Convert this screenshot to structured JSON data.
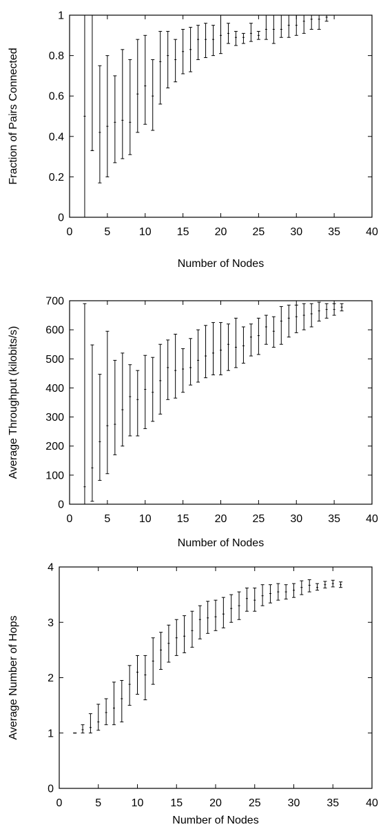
{
  "chart_data": [
    {
      "type": "scatter",
      "errorbars": true,
      "xlabel": "Number of Nodes",
      "ylabel": "Fraction of Pairs Connected",
      "xlim": [
        0,
        40
      ],
      "ylim": [
        0,
        1
      ],
      "xticks": [
        0,
        5,
        10,
        15,
        20,
        25,
        30,
        35,
        40
      ],
      "yticks": [
        0,
        0.2,
        0.4,
        0.6,
        0.8,
        1
      ],
      "ytick_labels": [
        "0",
        "0.2",
        "0.4",
        "0.6",
        "0.8",
        "1"
      ],
      "grid": false,
      "points": [
        {
          "x": 2,
          "y": 0.5,
          "lo": 0.0,
          "hi": 1.0
        },
        {
          "x": 3,
          "y": 0.33,
          "lo": 0.33,
          "hi": 1.0
        },
        {
          "x": 4,
          "y": 0.42,
          "lo": 0.17,
          "hi": 0.75
        },
        {
          "x": 5,
          "y": 0.45,
          "lo": 0.2,
          "hi": 0.8
        },
        {
          "x": 6,
          "y": 0.47,
          "lo": 0.27,
          "hi": 0.7
        },
        {
          "x": 7,
          "y": 0.48,
          "lo": 0.29,
          "hi": 0.83
        },
        {
          "x": 8,
          "y": 0.47,
          "lo": 0.31,
          "hi": 0.78
        },
        {
          "x": 9,
          "y": 0.61,
          "lo": 0.42,
          "hi": 0.88
        },
        {
          "x": 10,
          "y": 0.65,
          "lo": 0.46,
          "hi": 0.9
        },
        {
          "x": 11,
          "y": 0.6,
          "lo": 0.43,
          "hi": 0.78
        },
        {
          "x": 12,
          "y": 0.77,
          "lo": 0.56,
          "hi": 0.92
        },
        {
          "x": 13,
          "y": 0.8,
          "lo": 0.64,
          "hi": 0.92
        },
        {
          "x": 14,
          "y": 0.78,
          "lo": 0.67,
          "hi": 0.88
        },
        {
          "x": 15,
          "y": 0.82,
          "lo": 0.71,
          "hi": 0.93
        },
        {
          "x": 16,
          "y": 0.83,
          "lo": 0.72,
          "hi": 0.94
        },
        {
          "x": 17,
          "y": 0.88,
          "lo": 0.78,
          "hi": 0.95
        },
        {
          "x": 18,
          "y": 0.88,
          "lo": 0.79,
          "hi": 0.96
        },
        {
          "x": 19,
          "y": 0.88,
          "lo": 0.8,
          "hi": 0.95
        },
        {
          "x": 20,
          "y": 0.9,
          "lo": 0.81,
          "hi": 1.0
        },
        {
          "x": 21,
          "y": 0.91,
          "lo": 0.86,
          "hi": 0.96
        },
        {
          "x": 22,
          "y": 0.89,
          "lo": 0.85,
          "hi": 0.92
        },
        {
          "x": 23,
          "y": 0.89,
          "lo": 0.86,
          "hi": 0.91
        },
        {
          "x": 24,
          "y": 0.91,
          "lo": 0.87,
          "hi": 0.96
        },
        {
          "x": 25,
          "y": 0.9,
          "lo": 0.88,
          "hi": 0.92
        },
        {
          "x": 26,
          "y": 0.93,
          "lo": 0.88,
          "hi": 1.0
        },
        {
          "x": 27,
          "y": 0.93,
          "lo": 0.86,
          "hi": 1.0
        },
        {
          "x": 28,
          "y": 0.93,
          "lo": 0.89,
          "hi": 1.0
        },
        {
          "x": 29,
          "y": 0.95,
          "lo": 0.89,
          "hi": 1.0
        },
        {
          "x": 30,
          "y": 0.95,
          "lo": 0.9,
          "hi": 1.0
        },
        {
          "x": 31,
          "y": 0.97,
          "lo": 0.91,
          "hi": 1.0
        },
        {
          "x": 32,
          "y": 0.98,
          "lo": 0.93,
          "hi": 1.0
        },
        {
          "x": 33,
          "y": 0.98,
          "lo": 0.93,
          "hi": 1.0
        },
        {
          "x": 34,
          "y": 0.99,
          "lo": 0.97,
          "hi": 1.0
        },
        {
          "x": 35,
          "y": 1.0,
          "lo": 1.0,
          "hi": 1.0
        },
        {
          "x": 36,
          "y": 1.0,
          "lo": 1.0,
          "hi": 1.0
        }
      ]
    },
    {
      "type": "scatter",
      "errorbars": true,
      "xlabel": "Number of Nodes",
      "ylabel": "Average Throughput (kilobits/s)",
      "xlim": [
        0,
        40
      ],
      "ylim": [
        0,
        700
      ],
      "xticks": [
        0,
        5,
        10,
        15,
        20,
        25,
        30,
        35,
        40
      ],
      "yticks": [
        0,
        100,
        200,
        300,
        400,
        500,
        600,
        700
      ],
      "ytick_labels": [
        "0",
        "100",
        "200",
        "300",
        "400",
        "500",
        "600",
        "700"
      ],
      "grid": false,
      "points": [
        {
          "x": 2,
          "y": 60,
          "lo": 0,
          "hi": 690
        },
        {
          "x": 3,
          "y": 125,
          "lo": 10,
          "hi": 548
        },
        {
          "x": 4,
          "y": 215,
          "lo": 82,
          "hi": 447
        },
        {
          "x": 5,
          "y": 270,
          "lo": 105,
          "hi": 595
        },
        {
          "x": 6,
          "y": 275,
          "lo": 170,
          "hi": 495
        },
        {
          "x": 7,
          "y": 325,
          "lo": 200,
          "hi": 520
        },
        {
          "x": 8,
          "y": 370,
          "lo": 235,
          "hi": 480
        },
        {
          "x": 9,
          "y": 360,
          "lo": 235,
          "hi": 460
        },
        {
          "x": 10,
          "y": 395,
          "lo": 260,
          "hi": 512
        },
        {
          "x": 11,
          "y": 385,
          "lo": 285,
          "hi": 505
        },
        {
          "x": 12,
          "y": 425,
          "lo": 310,
          "hi": 550
        },
        {
          "x": 13,
          "y": 470,
          "lo": 360,
          "hi": 565
        },
        {
          "x": 14,
          "y": 460,
          "lo": 365,
          "hi": 585
        },
        {
          "x": 15,
          "y": 465,
          "lo": 385,
          "hi": 535
        },
        {
          "x": 16,
          "y": 470,
          "lo": 410,
          "hi": 570
        },
        {
          "x": 17,
          "y": 495,
          "lo": 420,
          "hi": 600
        },
        {
          "x": 18,
          "y": 510,
          "lo": 435,
          "hi": 615
        },
        {
          "x": 19,
          "y": 520,
          "lo": 445,
          "hi": 625
        },
        {
          "x": 20,
          "y": 530,
          "lo": 445,
          "hi": 625
        },
        {
          "x": 21,
          "y": 550,
          "lo": 460,
          "hi": 620
        },
        {
          "x": 22,
          "y": 540,
          "lo": 470,
          "hi": 640
        },
        {
          "x": 23,
          "y": 545,
          "lo": 485,
          "hi": 610
        },
        {
          "x": 24,
          "y": 575,
          "lo": 510,
          "hi": 620
        },
        {
          "x": 25,
          "y": 580,
          "lo": 515,
          "hi": 640
        },
        {
          "x": 26,
          "y": 610,
          "lo": 550,
          "hi": 650
        },
        {
          "x": 27,
          "y": 595,
          "lo": 540,
          "hi": 645
        },
        {
          "x": 28,
          "y": 630,
          "lo": 550,
          "hi": 680
        },
        {
          "x": 29,
          "y": 640,
          "lo": 575,
          "hi": 685
        },
        {
          "x": 30,
          "y": 645,
          "lo": 590,
          "hi": 685
        },
        {
          "x": 31,
          "y": 650,
          "lo": 600,
          "hi": 690
        },
        {
          "x": 32,
          "y": 655,
          "lo": 610,
          "hi": 690
        },
        {
          "x": 33,
          "y": 665,
          "lo": 630,
          "hi": 695
        },
        {
          "x": 34,
          "y": 670,
          "lo": 640,
          "hi": 690
        },
        {
          "x": 35,
          "y": 670,
          "lo": 650,
          "hi": 690
        },
        {
          "x": 36,
          "y": 678,
          "lo": 665,
          "hi": 690
        }
      ]
    },
    {
      "type": "scatter",
      "errorbars": true,
      "xlabel": "Number of Nodes",
      "ylabel": "Average Number of Hops",
      "xlim": [
        0,
        40
      ],
      "ylim": [
        0,
        4
      ],
      "xticks": [
        0,
        5,
        10,
        15,
        20,
        25,
        30,
        35,
        40
      ],
      "yticks": [
        0,
        1,
        2,
        3,
        4
      ],
      "ytick_labels": [
        "0",
        "1",
        "2",
        "3",
        "4"
      ],
      "grid": false,
      "points": [
        {
          "x": 2,
          "y": 1.0,
          "lo": 1.0,
          "hi": 1.0
        },
        {
          "x": 3,
          "y": 1.06,
          "lo": 1.0,
          "hi": 1.15
        },
        {
          "x": 4,
          "y": 1.1,
          "lo": 1.0,
          "hi": 1.35
        },
        {
          "x": 5,
          "y": 1.2,
          "lo": 1.05,
          "hi": 1.52
        },
        {
          "x": 6,
          "y": 1.37,
          "lo": 1.15,
          "hi": 1.62
        },
        {
          "x": 7,
          "y": 1.45,
          "lo": 1.15,
          "hi": 1.92
        },
        {
          "x": 8,
          "y": 1.62,
          "lo": 1.2,
          "hi": 1.95
        },
        {
          "x": 9,
          "y": 1.88,
          "lo": 1.5,
          "hi": 2.22
        },
        {
          "x": 10,
          "y": 2.1,
          "lo": 1.7,
          "hi": 2.4
        },
        {
          "x": 11,
          "y": 2.05,
          "lo": 1.6,
          "hi": 2.4
        },
        {
          "x": 12,
          "y": 2.3,
          "lo": 1.88,
          "hi": 2.72
        },
        {
          "x": 13,
          "y": 2.5,
          "lo": 2.15,
          "hi": 2.82
        },
        {
          "x": 14,
          "y": 2.62,
          "lo": 2.28,
          "hi": 2.95
        },
        {
          "x": 15,
          "y": 2.72,
          "lo": 2.4,
          "hi": 3.05
        },
        {
          "x": 16,
          "y": 2.75,
          "lo": 2.45,
          "hi": 3.12
        },
        {
          "x": 17,
          "y": 2.85,
          "lo": 2.55,
          "hi": 3.2
        },
        {
          "x": 18,
          "y": 3.05,
          "lo": 2.7,
          "hi": 3.3
        },
        {
          "x": 19,
          "y": 3.08,
          "lo": 2.8,
          "hi": 3.38
        },
        {
          "x": 20,
          "y": 3.1,
          "lo": 2.85,
          "hi": 3.4
        },
        {
          "x": 21,
          "y": 3.15,
          "lo": 2.9,
          "hi": 3.45
        },
        {
          "x": 22,
          "y": 3.25,
          "lo": 3.0,
          "hi": 3.5
        },
        {
          "x": 23,
          "y": 3.3,
          "lo": 3.05,
          "hi": 3.55
        },
        {
          "x": 24,
          "y": 3.43,
          "lo": 3.2,
          "hi": 3.62
        },
        {
          "x": 25,
          "y": 3.4,
          "lo": 3.2,
          "hi": 3.62
        },
        {
          "x": 26,
          "y": 3.48,
          "lo": 3.3,
          "hi": 3.68
        },
        {
          "x": 27,
          "y": 3.52,
          "lo": 3.35,
          "hi": 3.68
        },
        {
          "x": 28,
          "y": 3.55,
          "lo": 3.4,
          "hi": 3.7
        },
        {
          "x": 29,
          "y": 3.55,
          "lo": 3.42,
          "hi": 3.68
        },
        {
          "x": 30,
          "y": 3.58,
          "lo": 3.45,
          "hi": 3.7
        },
        {
          "x": 31,
          "y": 3.63,
          "lo": 3.5,
          "hi": 3.75
        },
        {
          "x": 32,
          "y": 3.67,
          "lo": 3.55,
          "hi": 3.77
        },
        {
          "x": 33,
          "y": 3.63,
          "lo": 3.58,
          "hi": 3.7
        },
        {
          "x": 34,
          "y": 3.68,
          "lo": 3.62,
          "hi": 3.74
        },
        {
          "x": 35,
          "y": 3.7,
          "lo": 3.64,
          "hi": 3.76
        },
        {
          "x": 36,
          "y": 3.68,
          "lo": 3.63,
          "hi": 3.73
        }
      ]
    }
  ]
}
